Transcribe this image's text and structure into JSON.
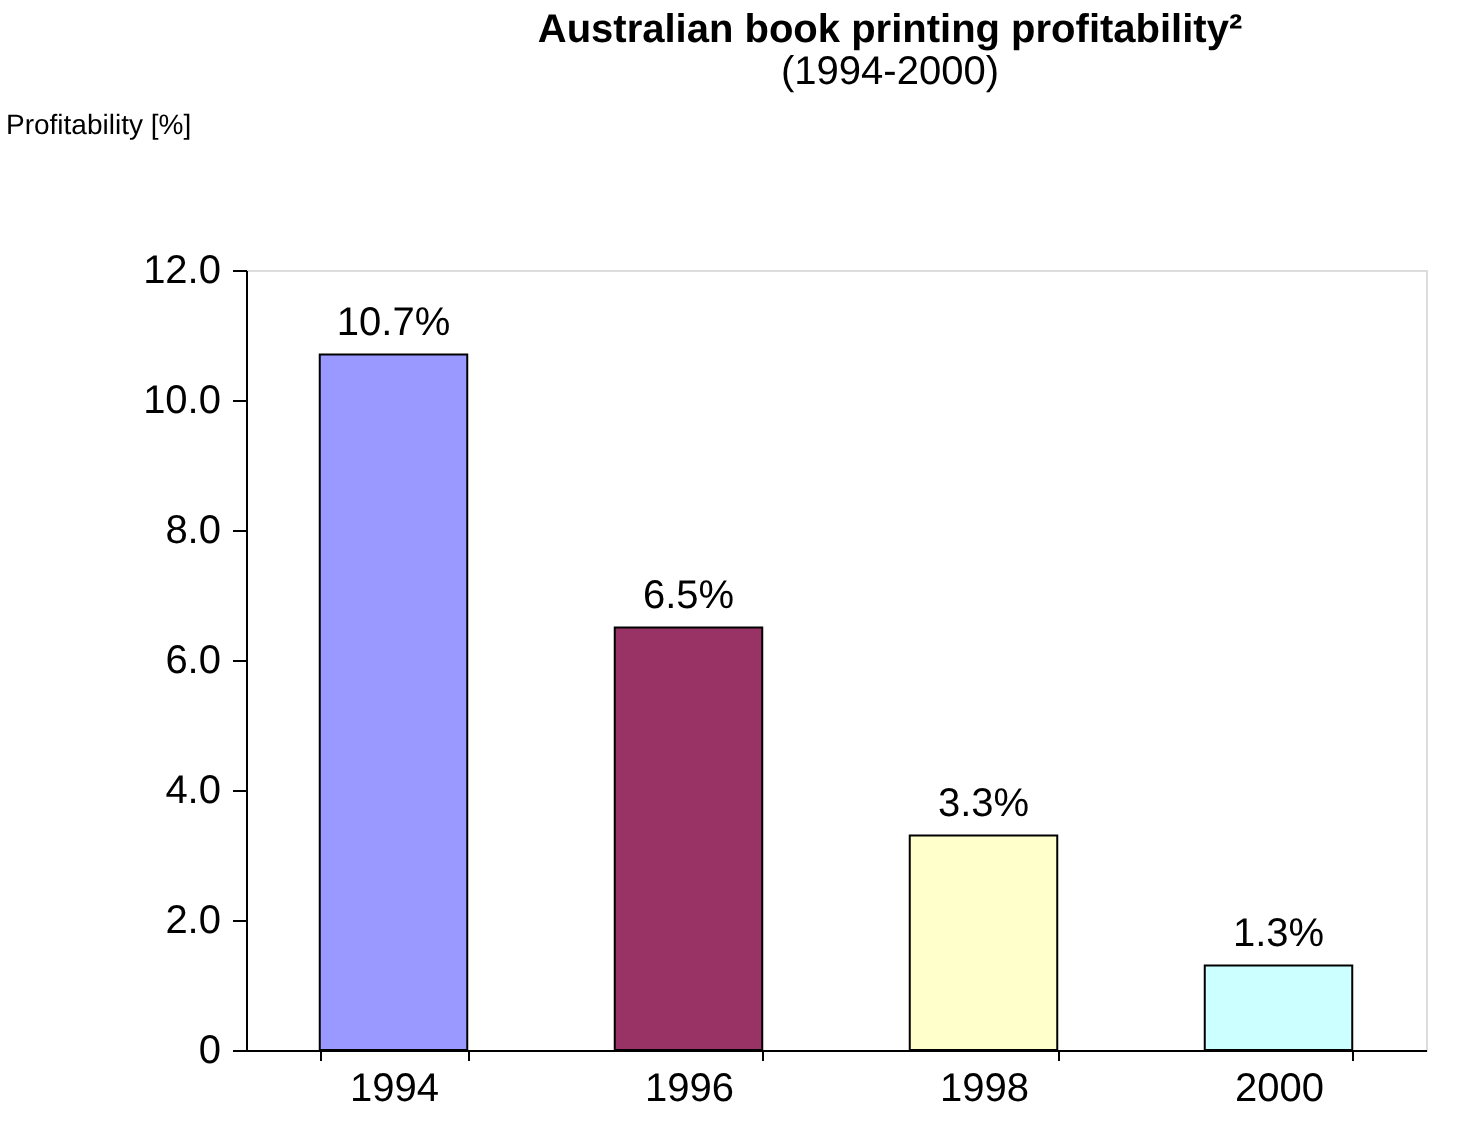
{
  "chart_data": {
    "type": "bar",
    "title": "Australian book printing profitability²",
    "subtitle": "(1994-2000)",
    "ylabel": "Profitability [%]",
    "categories": [
      "1994",
      "1996",
      "1998",
      "2000"
    ],
    "values": [
      10.7,
      6.5,
      3.3,
      1.3
    ],
    "colors": [
      "#9999ff",
      "#993366",
      "#ffffcc",
      "#ccffff"
    ],
    "value_labels": [
      "10.7%",
      "6.5%",
      "3.3%",
      "1.3%"
    ],
    "ylim": [
      0,
      12
    ],
    "yticks": [
      0,
      {
        "value": 2,
        "label": "2.0"
      },
      {
        "value": 4,
        "label": "4.0"
      },
      {
        "value": 6,
        "label": "6.0"
      },
      {
        "value": 8,
        "label": "8.0"
      },
      {
        "value": 10,
        "label": "10.0"
      },
      {
        "value": 12,
        "label": "12.0"
      }
    ],
    "grid": false
  }
}
